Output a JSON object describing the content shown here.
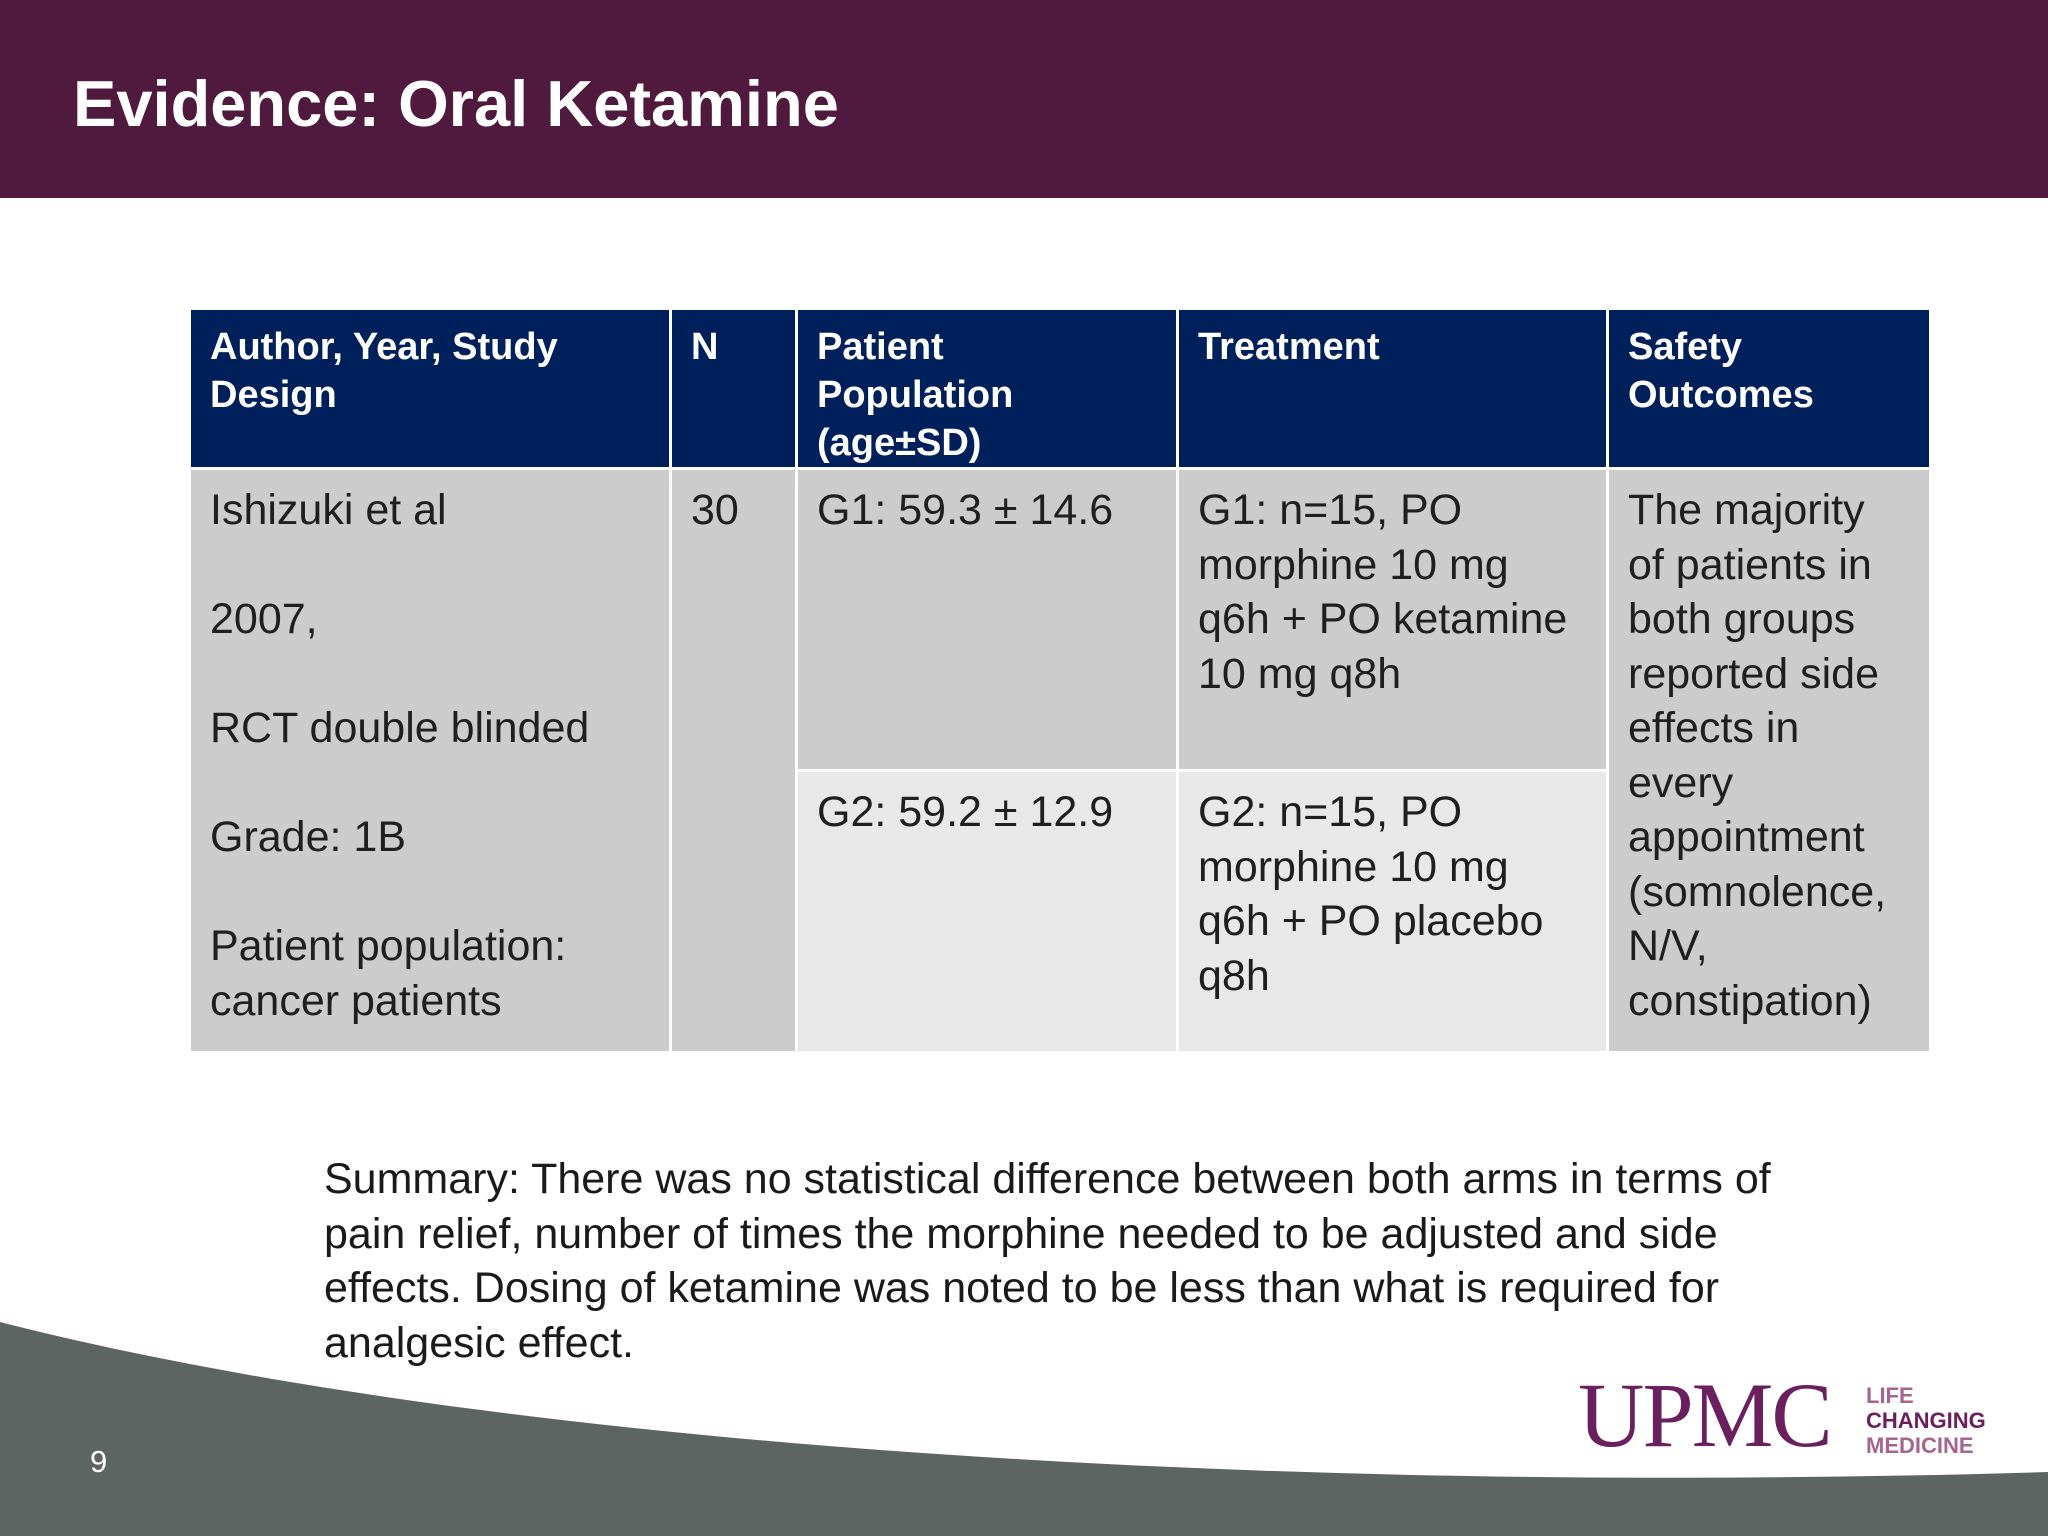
{
  "slide": {
    "title": "Evidence: Oral Ketamine",
    "page_number": "9"
  },
  "table": {
    "headers": {
      "author": [
        "Author, Year, Study",
        "Design"
      ],
      "n": "N",
      "population": [
        "Patient",
        "Population",
        "(age±SD)"
      ],
      "treatment": "Treatment",
      "safety": [
        "Safety",
        "Outcomes"
      ]
    },
    "author_cell": {
      "name": "Ishizuki et al",
      "year": "2007,",
      "design": "RCT double blinded",
      "grade": "Grade: 1B",
      "population_line1": "Patient population:",
      "population_line2": "cancer patients"
    },
    "n_value": "30",
    "groups": [
      {
        "population": "G1: 59.3 ± 14.6",
        "treatment": "G1: n=15, PO morphine 10 mg q6h  +  PO ketamine 10 mg q8h"
      },
      {
        "population": "G2: 59.2 ± 12.9",
        "treatment": "G2:  n=15,  PO morphine 10 mg q6h + PO placebo q8h"
      }
    ],
    "safety_outcome": "The majority of patients in both groups reported side effects in every appointment (somnolence, N/V, constipation)"
  },
  "summary": "Summary: There was no statistical difference between both arms in terms of pain relief, number of times the morphine needed to be adjusted and side effects. Dosing of ketamine was noted to be  less than what is required for analgesic effect.",
  "logo": {
    "mark": "UPMC",
    "tagline": [
      "LIFE",
      "CHANGING",
      "MEDICINE"
    ]
  },
  "colors": {
    "header_bg": "#501a3f",
    "table_header_bg": "#00205b",
    "cell_dark": "#cccccd",
    "cell_light": "#e8e8e9",
    "footer_gray": "#5d6562",
    "logo_purple": "#6a1f5f"
  }
}
